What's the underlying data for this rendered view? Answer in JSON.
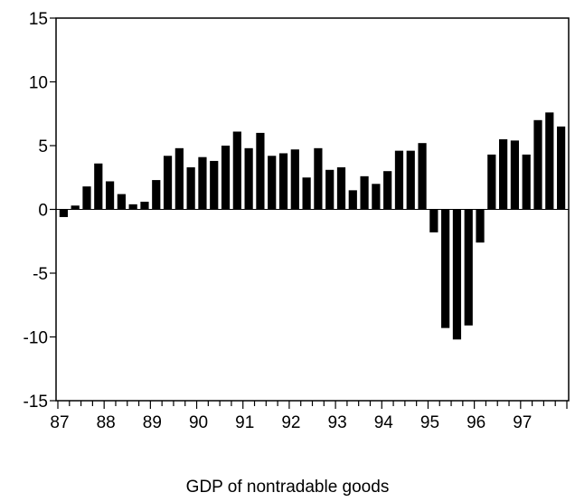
{
  "caption": "GDP of nontradable goods",
  "chart_data": {
    "type": "bar",
    "title": "",
    "xlabel": "GDP of nontradable goods",
    "ylabel": "",
    "ylim": [
      -15,
      15
    ],
    "yticks": [
      15,
      10,
      5,
      0,
      -5,
      -10,
      -15
    ],
    "year_labels": [
      "87",
      "88",
      "89",
      "90",
      "91",
      "92",
      "93",
      "94",
      "95",
      "96",
      "97"
    ],
    "bar_color": "#000000",
    "grid": false,
    "categories": [
      "87Q1",
      "87Q2",
      "87Q3",
      "87Q4",
      "88Q1",
      "88Q2",
      "88Q3",
      "88Q4",
      "89Q1",
      "89Q2",
      "89Q3",
      "89Q4",
      "90Q1",
      "90Q2",
      "90Q3",
      "90Q4",
      "91Q1",
      "91Q2",
      "91Q3",
      "91Q4",
      "92Q1",
      "92Q2",
      "92Q3",
      "92Q4",
      "93Q1",
      "93Q2",
      "93Q3",
      "93Q4",
      "94Q1",
      "94Q2",
      "94Q3",
      "94Q4",
      "95Q1",
      "95Q2",
      "95Q3",
      "95Q4",
      "96Q1",
      "96Q2",
      "96Q3",
      "96Q4",
      "97Q1",
      "97Q2",
      "97Q3",
      "97Q4"
    ],
    "values": [
      -0.6,
      0.3,
      1.8,
      3.6,
      2.2,
      1.2,
      0.4,
      0.6,
      2.3,
      4.2,
      4.8,
      3.3,
      4.1,
      3.8,
      5.0,
      6.1,
      4.8,
      6.0,
      4.2,
      4.4,
      4.7,
      2.5,
      4.8,
      3.1,
      3.3,
      1.5,
      2.6,
      2.0,
      3.0,
      4.6,
      4.6,
      5.2,
      -1.8,
      -9.3,
      -10.2,
      -9.1,
      -2.6,
      4.3,
      5.5,
      5.4,
      4.3,
      7.0,
      7.6,
      6.5
    ]
  }
}
